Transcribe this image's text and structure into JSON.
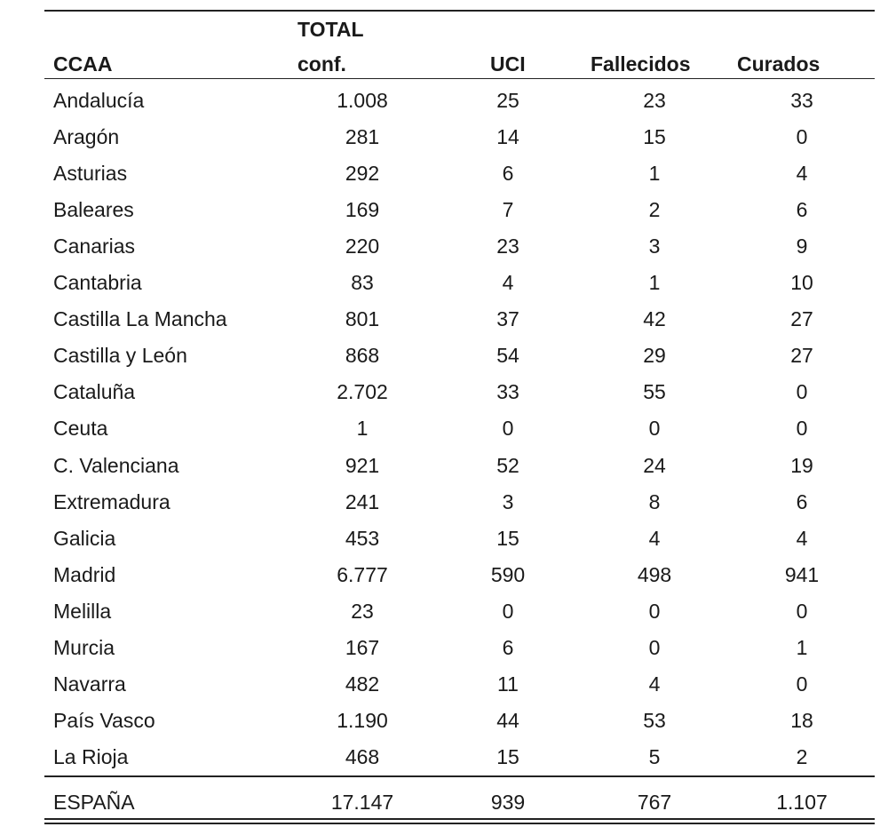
{
  "table": {
    "header": [
      "CCAA",
      "TOTAL",
      "conf.",
      "UCI",
      "Fallecidos",
      "Curados"
    ],
    "rows": [
      [
        "Andalucía",
        "1.008",
        "25",
        "23",
        "33"
      ],
      [
        "Aragón",
        "281",
        "14",
        "15",
        "0"
      ],
      [
        "Asturias",
        "292",
        "6",
        "1",
        "4"
      ],
      [
        "Baleares",
        "169",
        "7",
        "2",
        "6"
      ],
      [
        "Canarias",
        "220",
        "23",
        "3",
        "9"
      ],
      [
        "Cantabria",
        "83",
        "4",
        "1",
        "10"
      ],
      [
        "Castilla La Mancha",
        "801",
        "37",
        "42",
        "27"
      ],
      [
        "Castilla y León",
        "868",
        "54",
        "29",
        "27"
      ],
      [
        "Cataluña",
        "2.702",
        "33",
        "55",
        "0"
      ],
      [
        "Ceuta",
        "1",
        "0",
        "0",
        "0"
      ],
      [
        "C. Valenciana",
        "921",
        "52",
        "24",
        "19"
      ],
      [
        "Extremadura",
        "241",
        "3",
        "8",
        "6"
      ],
      [
        "Galicia",
        "453",
        "15",
        "4",
        "4"
      ],
      [
        "Madrid",
        "6.777",
        "590",
        "498",
        "941"
      ],
      [
        "Melilla",
        "23",
        "0",
        "0",
        "0"
      ],
      [
        "Murcia",
        "167",
        "6",
        "0",
        "1"
      ],
      [
        "Navarra",
        "482",
        "11",
        "4",
        "0"
      ],
      [
        "País Vasco",
        "1.190",
        "44",
        "53",
        "18"
      ],
      [
        "La Rioja",
        "468",
        "15",
        "5",
        "2"
      ]
    ],
    "total": [
      "ESPAÑA",
      "17.147",
      "939",
      "767",
      "1.107"
    ]
  }
}
